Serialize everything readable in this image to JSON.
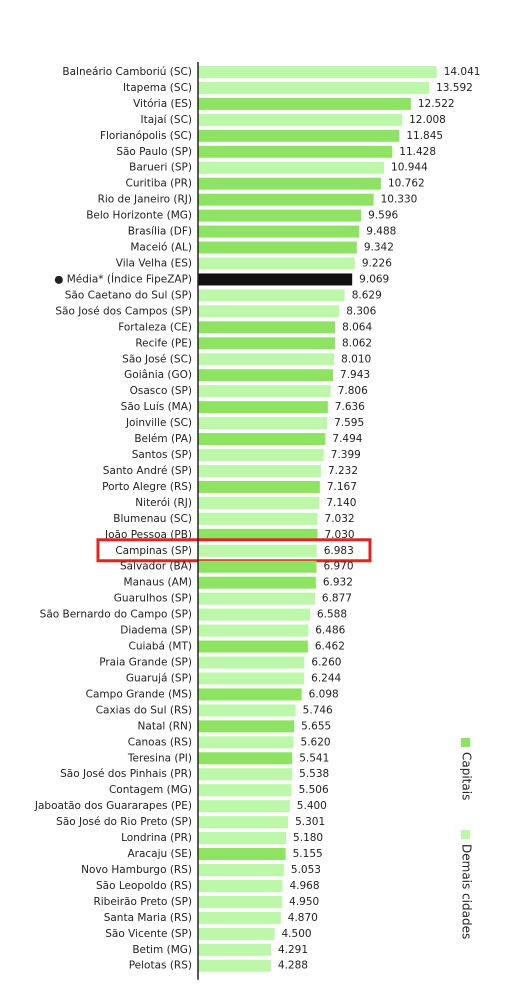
{
  "chart_data": {
    "type": "barh",
    "categories": [
      "Balneário Camboriú (SC)",
      "Itapema (SC)",
      "Vitória (ES)",
      "Itajaí (SC)",
      "Florianópolis (SC)",
      "São Paulo (SP)",
      "Barueri (SP)",
      "Curitiba (PR)",
      "Rio de Janeiro (RJ)",
      "Belo Horizonte (MG)",
      "Brasília (DF)",
      "Maceió (AL)",
      "Vila Velha (ES)",
      "● Média* (Índice FipeZAP)",
      "São Caetano do Sul (SP)",
      "São José dos Campos (SP)",
      "Fortaleza (CE)",
      "Recife (PE)",
      "São José (SC)",
      "Goiânia (GO)",
      "Osasco (SP)",
      "São Luís (MA)",
      "Joinville (SC)",
      "Belém (PA)",
      "Santos (SP)",
      "Santo André (SP)",
      "Porto Alegre (RS)",
      "Niterói (RJ)",
      "Blumenau (SC)",
      "João Pessoa (PB)",
      "Campinas (SP)",
      "Salvador (BA)",
      "Manaus (AM)",
      "Guarulhos (SP)",
      "São Bernardo do Campo (SP)",
      "Diadema (SP)",
      "Cuiabá (MT)",
      "Praia Grande (SP)",
      "Guarujá (SP)",
      "Campo Grande (MS)",
      "Caxias do Sul (RS)",
      "Natal (RN)",
      "Canoas (RS)",
      "Teresina (PI)",
      "São José dos Pinhais (PR)",
      "Contagem (MG)",
      "Jaboatão dos Guararapes (PE)",
      "São José do Rio Preto (SP)",
      "Londrina (PR)",
      "Aracaju (SE)",
      "Novo Hamburgo (RS)",
      "São Leopoldo (RS)",
      "Ribeirão Preto (SP)",
      "Santa Maria (RS)",
      "São Vicente (SP)",
      "Betim (MG)",
      "Pelotas (RS)"
    ],
    "values": [
      14041,
      13592,
      12522,
      12008,
      11845,
      11428,
      10944,
      10762,
      10330,
      9596,
      9488,
      9342,
      9226,
      9069,
      8629,
      8306,
      8064,
      8062,
      8010,
      7943,
      7806,
      7636,
      7595,
      7494,
      7399,
      7232,
      7167,
      7140,
      7032,
      7030,
      6983,
      6970,
      6932,
      6877,
      6588,
      6486,
      6462,
      6260,
      6244,
      6098,
      5746,
      5655,
      5620,
      5541,
      5538,
      5506,
      5400,
      5301,
      5180,
      5155,
      5053,
      4968,
      4950,
      4870,
      4500,
      4291,
      4288
    ],
    "value_labels": [
      "14.041",
      "13.592",
      "12.522",
      "12.008",
      "11.845",
      "11.428",
      "10.944",
      "10.762",
      "10.330",
      "9.596",
      "9.488",
      "9.342",
      "9.226",
      "9.069",
      "8.629",
      "8.306",
      "8.064",
      "8.062",
      "8.010",
      "7.943",
      "7.806",
      "7.636",
      "7.595",
      "7.494",
      "7.399",
      "7.232",
      "7.167",
      "7.140",
      "7.032",
      "7.030",
      "6.983",
      "6.970",
      "6.932",
      "6.877",
      "6.588",
      "6.486",
      "6.462",
      "6.260",
      "6.244",
      "6.098",
      "5.746",
      "5.655",
      "5.620",
      "5.541",
      "5.538",
      "5.506",
      "5.400",
      "5.301",
      "5.180",
      "5.155",
      "5.053",
      "4.968",
      "4.950",
      "4.870",
      "4.500",
      "4.291",
      "4.288"
    ],
    "colors": [
      "#bdf7aa",
      "#bdf7aa",
      "#8ee363",
      "#bdf7aa",
      "#8ee363",
      "#8ee363",
      "#bdf7aa",
      "#8ee363",
      "#8ee363",
      "#8ee363",
      "#8ee363",
      "#8ee363",
      "#bdf7aa",
      "#111111",
      "#bdf7aa",
      "#bdf7aa",
      "#8ee363",
      "#8ee363",
      "#bdf7aa",
      "#8ee363",
      "#bdf7aa",
      "#8ee363",
      "#bdf7aa",
      "#8ee363",
      "#bdf7aa",
      "#bdf7aa",
      "#8ee363",
      "#bdf7aa",
      "#bdf7aa",
      "#8ee363",
      "#bdf7aa",
      "#8ee363",
      "#8ee363",
      "#bdf7aa",
      "#bdf7aa",
      "#bdf7aa",
      "#8ee363",
      "#bdf7aa",
      "#bdf7aa",
      "#8ee363",
      "#bdf7aa",
      "#8ee363",
      "#bdf7aa",
      "#8ee363",
      "#bdf7aa",
      "#bdf7aa",
      "#bdf7aa",
      "#bdf7aa",
      "#bdf7aa",
      "#8ee363",
      "#bdf7aa",
      "#bdf7aa",
      "#bdf7aa",
      "#bdf7aa",
      "#bdf7aa",
      "#bdf7aa",
      "#bdf7aa"
    ],
    "xlim": [
      0,
      15000
    ],
    "highlight_index": 30,
    "highlight_color": "#e02424",
    "legend": {
      "position": "right",
      "entries": [
        {
          "name": "Capitais",
          "color": "#8ee363"
        },
        {
          "name": "Demais cidades",
          "color": "#bdf7aa"
        }
      ]
    }
  }
}
